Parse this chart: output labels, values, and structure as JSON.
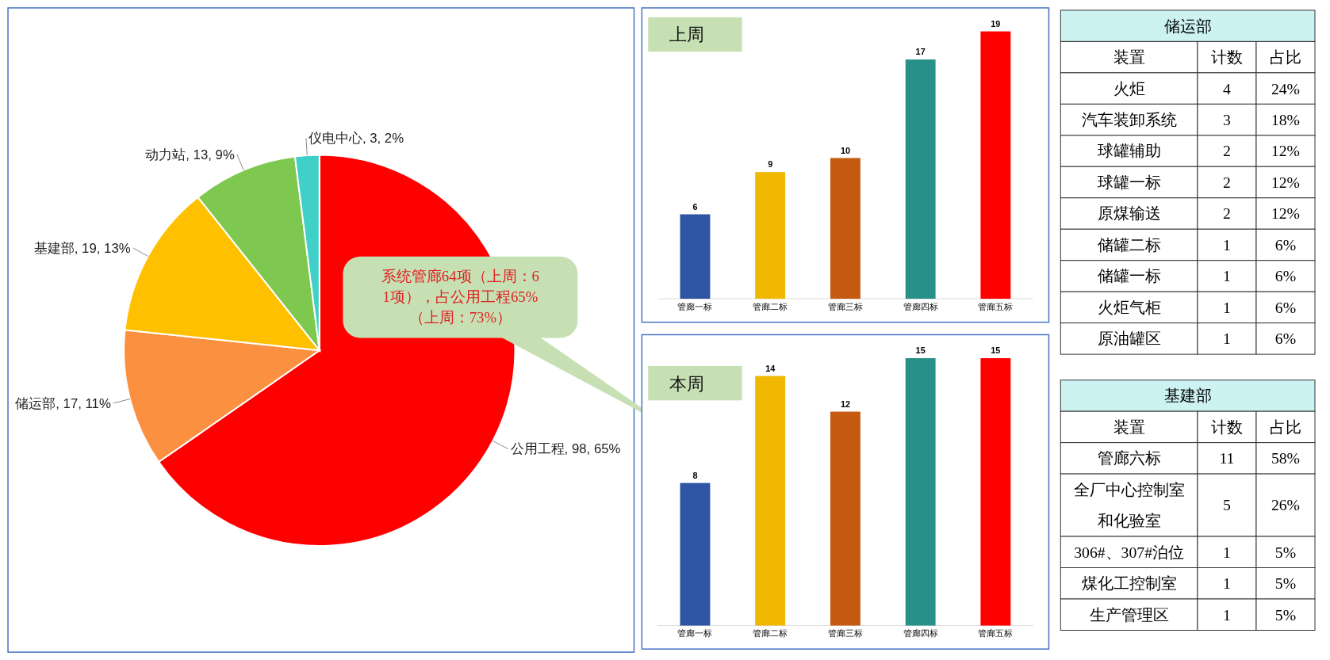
{
  "chart_data": [
    {
      "type": "pie",
      "categories": [
        "公用工程",
        "储运部",
        "基建部",
        "动力站",
        "仪电中心"
      ],
      "values": [
        98,
        17,
        19,
        13,
        3
      ],
      "value_labels": [
        "98, 65%",
        "17, 11%",
        "19, 13%",
        "13, 9%",
        "3, 2%"
      ],
      "colors": [
        "#ff0000",
        "#fb9140",
        "#ffc000",
        "#7ec850",
        "#40d0c8"
      ],
      "annotations": [
        "系统管廊64项（上周：61项），占公用工程65%（上周：73%）"
      ]
    },
    {
      "type": "bar",
      "title": "上周",
      "categories": [
        "管廊一标",
        "管廊二标",
        "管廊三标",
        "管廊四标",
        "管廊五标"
      ],
      "values": [
        6,
        9,
        10,
        17,
        19
      ],
      "colors": [
        "#2e54a4",
        "#f0b800",
        "#c55a11",
        "#279088",
        "#ff0000"
      ],
      "data_labels": true
    },
    {
      "type": "bar",
      "title": "本周",
      "categories": [
        "管廊一标",
        "管廊二标",
        "管廊三标",
        "管廊四标",
        "管廊五标"
      ],
      "values": [
        8,
        14,
        12,
        15,
        15
      ],
      "colors": [
        "#2e54a4",
        "#f0b800",
        "#c55a11",
        "#279088",
        "#ff0000"
      ],
      "data_labels": true
    },
    {
      "type": "other",
      "title": "储运部",
      "xlabel": "装置",
      "categories": [
        "火炬",
        "汽车装卸系统",
        "球罐辅助",
        "球罐一标",
        "原煤输送",
        "储罐二标",
        "储罐一标",
        "火炬气柜",
        "原油罐区"
      ],
      "series": [
        {
          "name": "计数",
          "values": [
            4,
            3,
            2,
            2,
            2,
            1,
            1,
            1,
            1
          ]
        },
        {
          "name": "占比",
          "values": [
            24,
            18,
            12,
            12,
            12,
            6,
            6,
            6,
            6
          ],
          "value_labels": [
            "24%",
            "18%",
            "12%",
            "12%",
            "12%",
            "6%",
            "6%",
            "6%",
            "6%"
          ]
        }
      ],
      "data_labels": true
    },
    {
      "type": "other",
      "title": "基建部",
      "xlabel": "装置",
      "categories": [
        "管廊六标",
        "全厂中心控制室和化验室",
        "306#、307#泊位",
        "煤化工控制室",
        "生产管理区"
      ],
      "series": [
        {
          "name": "计数",
          "values": [
            11,
            5,
            1,
            1,
            1
          ]
        },
        {
          "name": "占比",
          "values": [
            58,
            26,
            5,
            5,
            5
          ],
          "value_labels": [
            "58%",
            "26%",
            "5%",
            "5%",
            "5%"
          ]
        }
      ],
      "data_labels": true
    }
  ]
}
